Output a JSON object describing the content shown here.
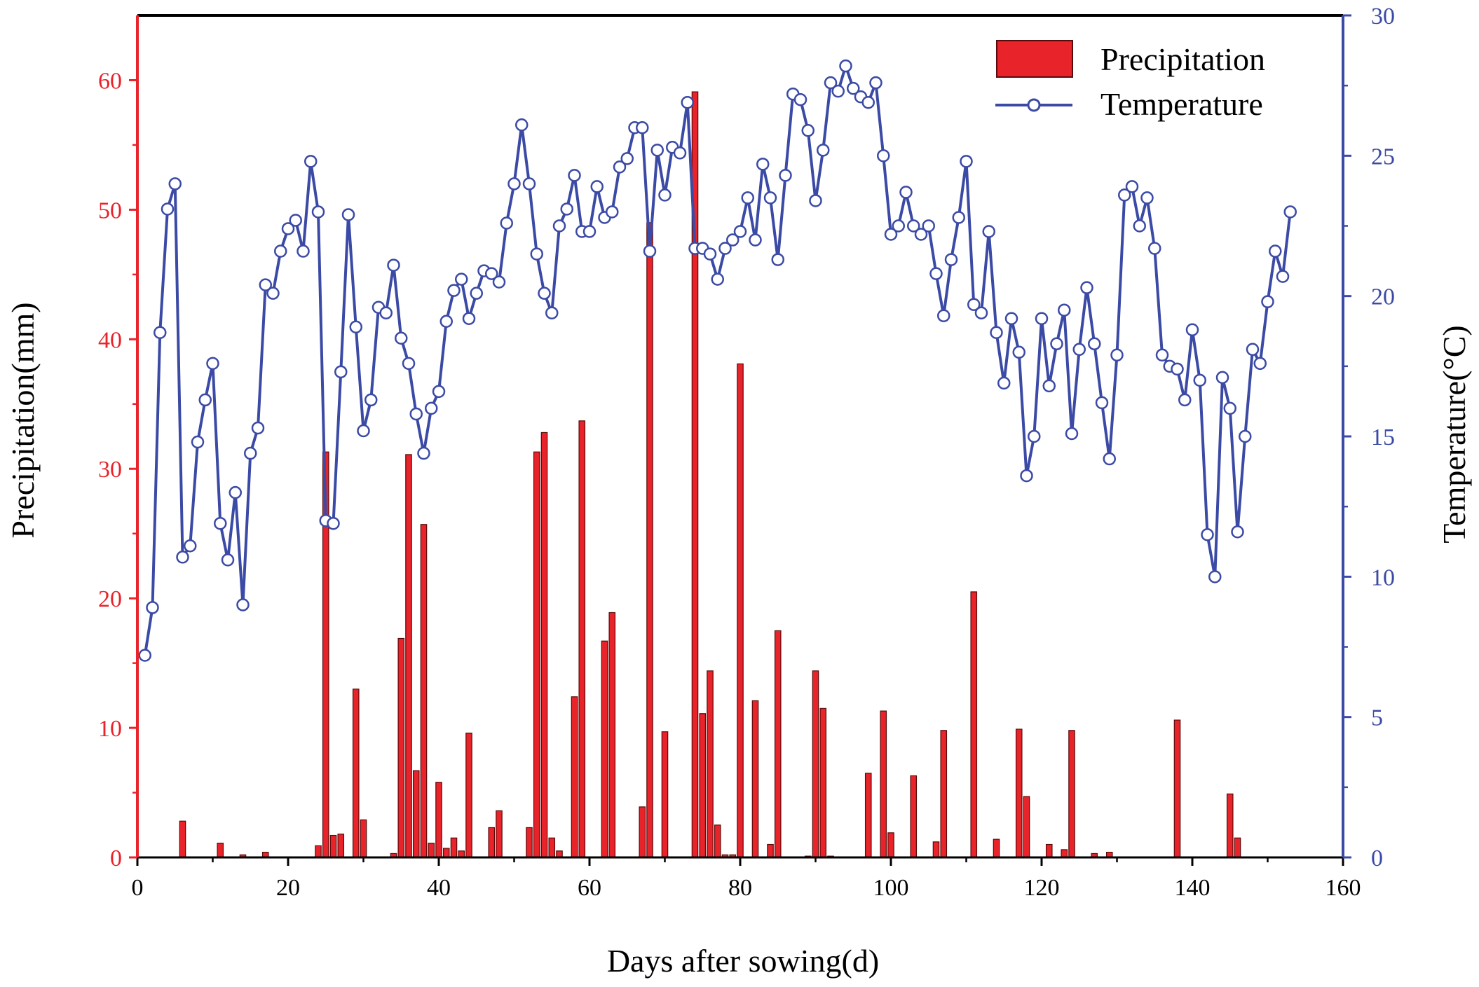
{
  "colors": {
    "precipitation_fill": "#e8232a",
    "precipitation_edge": "#5a0a0a",
    "temperature_line": "#3b4aa5",
    "left_axis": "#e8232a",
    "right_axis": "#3b4aa5",
    "frame": "#000000"
  },
  "chart_data": {
    "type": "bar+line",
    "xlabel": "Days after sowing(d)",
    "ylabel_left": "Precipitation(mm)",
    "ylabel_right": "Temperature(°C)",
    "xlim": [
      0,
      160
    ],
    "ylim_left": [
      0,
      65
    ],
    "ylim_right": [
      0,
      30
    ],
    "x_ticks": [
      "0",
      "20",
      "40",
      "60",
      "80",
      "100",
      "120",
      "140",
      "160"
    ],
    "y_left_ticks": [
      "0",
      "10",
      "20",
      "30",
      "40",
      "50",
      "60"
    ],
    "y_right_ticks": [
      "0",
      "5",
      "10",
      "15",
      "20",
      "25",
      "30"
    ],
    "legend": {
      "position": "top-right",
      "entries": [
        "Precipitation",
        "Temperature"
      ]
    },
    "series": [
      {
        "name": "Precipitation",
        "type": "bar",
        "axis": "left",
        "x": [
          6,
          11,
          14,
          17,
          24,
          25,
          26,
          27,
          29,
          30,
          34,
          35,
          36,
          37,
          38,
          39,
          40,
          41,
          42,
          43,
          44,
          47,
          48,
          52,
          53,
          54,
          55,
          56,
          58,
          59,
          62,
          63,
          67,
          68,
          70,
          74,
          75,
          76,
          77,
          78,
          79,
          80,
          82,
          84,
          85,
          89,
          90,
          91,
          92,
          97,
          99,
          100,
          103,
          106,
          107,
          111,
          114,
          117,
          118,
          121,
          123,
          124,
          127,
          129,
          138,
          145,
          146
        ],
        "values": [
          2.8,
          1.1,
          0.2,
          0.4,
          0.9,
          31.3,
          1.7,
          1.8,
          13.0,
          2.9,
          0.3,
          16.9,
          31.1,
          6.7,
          25.7,
          1.1,
          5.8,
          0.7,
          1.5,
          0.5,
          9.6,
          2.3,
          3.6,
          2.3,
          31.3,
          32.8,
          1.5,
          0.5,
          12.4,
          33.7,
          16.7,
          18.9,
          3.9,
          49.0,
          9.7,
          59.1,
          11.1,
          14.4,
          2.5,
          0.2,
          0.2,
          38.1,
          12.1,
          1.0,
          17.5,
          0.1,
          14.4,
          11.5,
          0.1,
          6.5,
          11.3,
          1.9,
          6.3,
          1.2,
          9.8,
          20.5,
          1.4,
          9.9,
          4.7,
          1.0,
          0.6,
          9.8,
          0.3,
          0.4,
          10.6,
          4.9,
          1.5
        ]
      },
      {
        "name": "Temperature",
        "type": "line",
        "axis": "right",
        "x_start": 1,
        "x_step": 1,
        "values": [
          7.2,
          8.9,
          18.7,
          23.1,
          24.0,
          10.7,
          11.1,
          14.8,
          16.3,
          17.6,
          11.9,
          10.6,
          13.0,
          9.0,
          14.4,
          15.3,
          20.4,
          20.1,
          21.6,
          22.4,
          22.7,
          21.6,
          24.8,
          23.0,
          12.0,
          11.9,
          17.3,
          22.9,
          18.9,
          15.2,
          16.3,
          19.6,
          19.4,
          21.1,
          18.5,
          17.6,
          15.8,
          14.4,
          16.0,
          16.6,
          19.1,
          20.2,
          20.6,
          19.2,
          20.1,
          20.9,
          20.8,
          20.5,
          22.6,
          24.0,
          26.1,
          24.0,
          21.5,
          20.1,
          19.4,
          22.5,
          23.1,
          24.3,
          22.3,
          22.3,
          23.9,
          22.8,
          23.0,
          24.6,
          24.9,
          26.0,
          26.0,
          21.6,
          25.2,
          23.6,
          25.3,
          25.1,
          26.9,
          21.7,
          21.7,
          21.5,
          20.6,
          21.7,
          22.0,
          22.3,
          23.5,
          22.0,
          24.7,
          23.5,
          21.3,
          24.3,
          27.2,
          27.0,
          25.9,
          23.4,
          25.2,
          27.6,
          27.3,
          28.2,
          27.4,
          27.1,
          26.9,
          27.6,
          25.0,
          22.2,
          22.5,
          23.7,
          22.5,
          22.2,
          22.5,
          20.8,
          19.3,
          21.3,
          22.8,
          24.8,
          19.7,
          19.4,
          22.3,
          18.7,
          16.9,
          19.2,
          18.0,
          13.6,
          15.0,
          19.2,
          16.8,
          18.3,
          19.5,
          15.1,
          18.1,
          20.3,
          18.3,
          16.2,
          14.2,
          17.9,
          23.6,
          23.9,
          22.5,
          23.5,
          21.7,
          17.9,
          17.5,
          17.4,
          16.3,
          18.8,
          17.0,
          11.5,
          10.0,
          17.1,
          16.0,
          11.6,
          15.0,
          18.1,
          17.6,
          19.8,
          21.6,
          20.7,
          23.0
        ]
      }
    ]
  }
}
